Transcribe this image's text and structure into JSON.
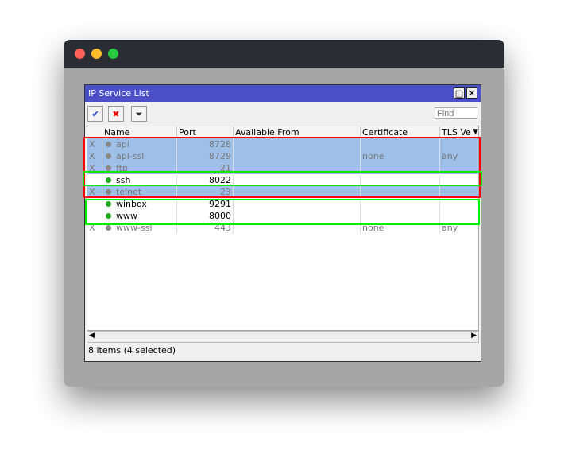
{
  "window": {
    "title": "IP Service List",
    "maximize_icon": "maximize-icon",
    "close_icon": "close-icon"
  },
  "toolbar": {
    "enable_icon": "checkmark-icon",
    "disable_icon": "x-icon",
    "filter_icon": "filter-icon",
    "find_placeholder": "Find"
  },
  "columns": [
    "",
    "Name",
    "Port",
    "Available From",
    "Certificate",
    "TLS Ve"
  ],
  "rows": [
    {
      "flag": "X",
      "name": "api",
      "port": "8728",
      "from": "",
      "cert": "",
      "tls": "",
      "enabled": false,
      "selected": true
    },
    {
      "flag": "X",
      "name": "api-ssl",
      "port": "8729",
      "from": "",
      "cert": "none",
      "tls": "any",
      "enabled": false,
      "selected": true
    },
    {
      "flag": "X",
      "name": "ftp",
      "port": "21",
      "from": "",
      "cert": "",
      "tls": "",
      "enabled": false,
      "selected": true
    },
    {
      "flag": "",
      "name": "ssh",
      "port": "8022",
      "from": "",
      "cert": "",
      "tls": "",
      "enabled": true,
      "selected": false
    },
    {
      "flag": "X",
      "name": "telnet",
      "port": "23",
      "from": "",
      "cert": "",
      "tls": "",
      "enabled": false,
      "selected": true
    },
    {
      "flag": "",
      "name": "winbox",
      "port": "9291",
      "from": "",
      "cert": "",
      "tls": "",
      "enabled": true,
      "selected": false
    },
    {
      "flag": "",
      "name": "www",
      "port": "8000",
      "from": "",
      "cert": "",
      "tls": "",
      "enabled": true,
      "selected": false
    },
    {
      "flag": "X",
      "name": "www-ssl",
      "port": "443",
      "from": "",
      "cert": "none",
      "tls": "any",
      "enabled": false,
      "selected": false
    }
  ],
  "status": "8 items (4 selected)",
  "colors": {
    "title_bar": "#4b50c8",
    "selection": "#9dbfe8",
    "enabled_led": "#22aa22",
    "disabled_led": "#888888",
    "highlight_red": "#ff0000",
    "highlight_green": "#00ee00"
  }
}
